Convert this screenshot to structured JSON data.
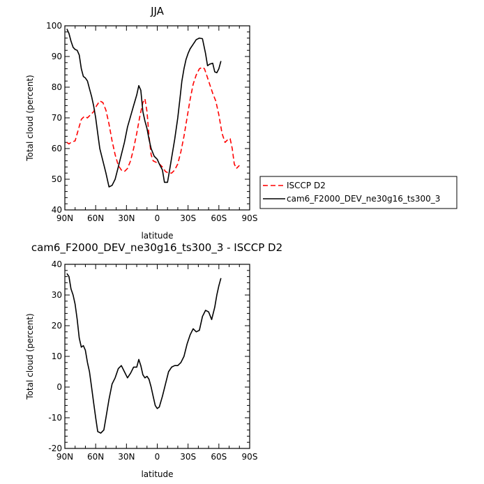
{
  "chart_data": [
    {
      "type": "line",
      "title": "JJA",
      "xlabel": "latitude",
      "ylabel": "Total cloud (percent)",
      "xlim": [
        -90,
        90
      ],
      "ylim": [
        40,
        100
      ],
      "x_ticks": [
        "90N",
        "60N",
        "30N",
        "0",
        "30S",
        "60S",
        "90S"
      ],
      "y_ticks": [
        "40",
        "50",
        "60",
        "70",
        "80",
        "90",
        "100"
      ],
      "legend_position": "right-bottom-outside",
      "series": [
        {
          "name": "ISCCP D2",
          "color": "#ff0000",
          "dash": "dashed",
          "points": [
            [
              -88,
              62
            ],
            [
              -86,
              61.5
            ],
            [
              -84,
              62
            ],
            [
              -80,
              62.5
            ],
            [
              -77,
              66
            ],
            [
              -74,
              69.5
            ],
            [
              -71,
              70.5
            ],
            [
              -68,
              70
            ],
            [
              -65,
              71
            ],
            [
              -62,
              72
            ],
            [
              -59,
              74
            ],
            [
              -56,
              75.5
            ],
            [
              -53,
              75
            ],
            [
              -50,
              72.5
            ],
            [
              -47,
              68
            ],
            [
              -44,
              62.5
            ],
            [
              -41,
              58
            ],
            [
              -38,
              54.5
            ],
            [
              -35,
              53
            ],
            [
              -32,
              52.5
            ],
            [
              -29,
              53.5
            ],
            [
              -26,
              56
            ],
            [
              -23,
              60
            ],
            [
              -20,
              65
            ],
            [
              -17,
              70.5
            ],
            [
              -14,
              75
            ],
            [
              -12,
              76.2
            ],
            [
              -10,
              72
            ],
            [
              -8,
              64
            ],
            [
              -6,
              58
            ],
            [
              -4,
              56
            ],
            [
              -1,
              55.5
            ],
            [
              2,
              55
            ],
            [
              5,
              54
            ],
            [
              8,
              52.5
            ],
            [
              11,
              52
            ],
            [
              14,
              52
            ],
            [
              17,
              53
            ],
            [
              20,
              55
            ],
            [
              23,
              59
            ],
            [
              26,
              64
            ],
            [
              29,
              70
            ],
            [
              32,
              76
            ],
            [
              35,
              81
            ],
            [
              38,
              84
            ],
            [
              41,
              86
            ],
            [
              44,
              86.5
            ],
            [
              46,
              86
            ],
            [
              48,
              84
            ],
            [
              51,
              81
            ],
            [
              54,
              78
            ],
            [
              57,
              75.5
            ],
            [
              60,
              71
            ],
            [
              63,
              65
            ],
            [
              66,
              62
            ],
            [
              69,
              63
            ],
            [
              71,
              63.2
            ],
            [
              73,
              60
            ],
            [
              75,
              55
            ],
            [
              77,
              53.5
            ],
            [
              80,
              54.5
            ]
          ]
        },
        {
          "name": "cam6_F2000_DEV_ne30g16_ts300_3",
          "color": "#000000",
          "dash": "solid",
          "points": [
            [
              -88,
              99
            ],
            [
              -86,
              97.5
            ],
            [
              -84,
              95
            ],
            [
              -82,
              93
            ],
            [
              -80,
              92.3
            ],
            [
              -78,
              92
            ],
            [
              -76,
              90.5
            ],
            [
              -74,
              86
            ],
            [
              -72,
              83.5
            ],
            [
              -70,
              83
            ],
            [
              -68,
              82
            ],
            [
              -66,
              79.5
            ],
            [
              -64,
              77
            ],
            [
              -62,
              74
            ],
            [
              -60,
              70
            ],
            [
              -58,
              65
            ],
            [
              -56,
              60
            ],
            [
              -53,
              56
            ],
            [
              -50,
              52
            ],
            [
              -47,
              47.5
            ],
            [
              -44,
              48
            ],
            [
              -41,
              50
            ],
            [
              -38,
              54
            ],
            [
              -35,
              58
            ],
            [
              -32,
              62
            ],
            [
              -29,
              67
            ],
            [
              -26,
              70.5
            ],
            [
              -23,
              74
            ],
            [
              -20,
              77.5
            ],
            [
              -18,
              80.5
            ],
            [
              -16,
              79
            ],
            [
              -14,
              72
            ],
            [
              -12,
              69
            ],
            [
              -10,
              66.5
            ],
            [
              -8,
              63
            ],
            [
              -6,
              60
            ],
            [
              -3,
              57.5
            ],
            [
              0,
              56.5
            ],
            [
              2,
              55
            ],
            [
              5,
              53
            ],
            [
              7,
              49
            ],
            [
              10,
              49
            ],
            [
              12,
              53
            ],
            [
              14,
              57
            ],
            [
              17,
              63
            ],
            [
              20,
              70
            ],
            [
              22,
              76
            ],
            [
              24,
              82
            ],
            [
              26,
              86
            ],
            [
              28,
              89
            ],
            [
              30,
              91
            ],
            [
              32,
              92.5
            ],
            [
              35,
              94
            ],
            [
              38,
              95.5
            ],
            [
              41,
              96
            ],
            [
              44,
              95.8
            ],
            [
              47,
              91
            ],
            [
              49,
              87
            ],
            [
              51,
              87.5
            ],
            [
              54,
              87.8
            ],
            [
              56,
              85
            ],
            [
              58,
              84.7
            ],
            [
              60,
              86
            ],
            [
              62,
              88.5
            ]
          ]
        }
      ]
    },
    {
      "type": "line",
      "title": "cam6_F2000_DEV_ne30g16_ts300_3 - ISCCP D2",
      "xlabel": "latitude",
      "ylabel": "Total cloud (percent)",
      "xlim": [
        -90,
        90
      ],
      "ylim": [
        -20,
        40
      ],
      "x_ticks": [
        "90N",
        "60N",
        "30N",
        "0",
        "30S",
        "60S",
        "90S"
      ],
      "y_ticks": [
        "-20",
        "-10",
        "0",
        "10",
        "20",
        "30",
        "40"
      ],
      "series": [
        {
          "color": "#000000",
          "dash": "solid",
          "points": [
            [
              -88,
              37
            ],
            [
              -86,
              36
            ],
            [
              -84,
              32
            ],
            [
              -82,
              30
            ],
            [
              -80,
              27
            ],
            [
              -78,
              22
            ],
            [
              -76,
              16
            ],
            [
              -74,
              13
            ],
            [
              -72,
              13.5
            ],
            [
              -70,
              12
            ],
            [
              -68,
              8
            ],
            [
              -66,
              5
            ],
            [
              -64,
              0
            ],
            [
              -62,
              -5
            ],
            [
              -60,
              -10
            ],
            [
              -58,
              -14.5
            ],
            [
              -55,
              -15
            ],
            [
              -52,
              -14
            ],
            [
              -50,
              -10
            ],
            [
              -47,
              -4
            ],
            [
              -44,
              1
            ],
            [
              -41,
              3
            ],
            [
              -38,
              6
            ],
            [
              -35,
              7
            ],
            [
              -32,
              5
            ],
            [
              -29,
              3
            ],
            [
              -26,
              4.5
            ],
            [
              -23,
              6.5
            ],
            [
              -20,
              6.5
            ],
            [
              -18,
              9
            ],
            [
              -16,
              7
            ],
            [
              -14,
              4
            ],
            [
              -12,
              3
            ],
            [
              -10,
              3.5
            ],
            [
              -8,
              2.5
            ],
            [
              -6,
              0
            ],
            [
              -4,
              -3
            ],
            [
              -2,
              -6
            ],
            [
              0,
              -7
            ],
            [
              2,
              -6.5
            ],
            [
              5,
              -3
            ],
            [
              8,
              1
            ],
            [
              11,
              5
            ],
            [
              14,
              6.5
            ],
            [
              17,
              7
            ],
            [
              20,
              7
            ],
            [
              23,
              8
            ],
            [
              26,
              10
            ],
            [
              29,
              14
            ],
            [
              32,
              17
            ],
            [
              35,
              19
            ],
            [
              38,
              18
            ],
            [
              41,
              18.5
            ],
            [
              44,
              23
            ],
            [
              47,
              25
            ],
            [
              50,
              24.5
            ],
            [
              53,
              22
            ],
            [
              56,
              26
            ],
            [
              58,
              30
            ],
            [
              60,
              33
            ],
            [
              62,
              35.5
            ]
          ]
        }
      ]
    }
  ]
}
